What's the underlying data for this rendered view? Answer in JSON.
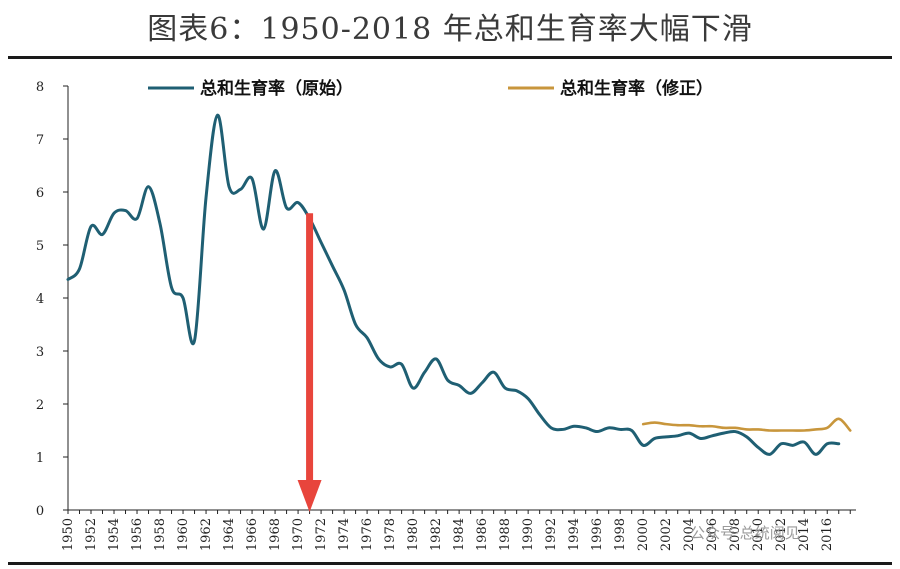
{
  "header": {
    "title": "图表6：1950-2018 年总和生育率大幅下滑"
  },
  "watermark": {
    "text": "公众号·总统阅见"
  },
  "chart_data": {
    "type": "line",
    "title": "图表6：1950-2018 年总和生育率大幅下滑",
    "xlabel": "",
    "ylabel": "",
    "xlim": [
      1950,
      2018.5
    ],
    "ylim": [
      0,
      8
    ],
    "yticks": [
      0,
      1,
      2,
      3,
      4,
      5,
      6,
      7,
      8
    ],
    "xticks": [
      1950,
      1952,
      1954,
      1956,
      1958,
      1960,
      1962,
      1964,
      1966,
      1968,
      1970,
      1972,
      1974,
      1976,
      1978,
      1980,
      1982,
      1984,
      1986,
      1988,
      1990,
      1992,
      1994,
      1996,
      1998,
      2000,
      2002,
      2004,
      2006,
      2008,
      2010,
      2012,
      2014,
      2016
    ],
    "legend_position": "top",
    "annotation": {
      "type": "arrow",
      "x": 1971,
      "y_from": 5.6,
      "y_to": 0,
      "color": "#e8453c"
    },
    "series": [
      {
        "name": "总和生育率（原始）",
        "color": "#1f5f73",
        "x": [
          1950,
          1951,
          1952,
          1953,
          1954,
          1955,
          1956,
          1957,
          1958,
          1959,
          1960,
          1961,
          1962,
          1963,
          1964,
          1965,
          1966,
          1967,
          1968,
          1969,
          1970,
          1971,
          1972,
          1973,
          1974,
          1975,
          1976,
          1977,
          1978,
          1979,
          1980,
          1981,
          1982,
          1983,
          1984,
          1985,
          1986,
          1987,
          1988,
          1989,
          1990,
          1991,
          1992,
          1993,
          1994,
          1995,
          1996,
          1997,
          1998,
          1999,
          2000,
          2001,
          2002,
          2003,
          2004,
          2005,
          2006,
          2007,
          2008,
          2009,
          2010,
          2011,
          2012,
          2013,
          2014,
          2015,
          2016,
          2017
        ],
        "values": [
          4.35,
          4.55,
          5.35,
          5.2,
          5.6,
          5.65,
          5.5,
          6.1,
          5.4,
          4.2,
          4.0,
          3.2,
          5.9,
          7.45,
          6.1,
          6.05,
          6.25,
          5.3,
          6.4,
          5.7,
          5.8,
          5.5,
          5.05,
          4.6,
          4.15,
          3.5,
          3.25,
          2.85,
          2.7,
          2.75,
          2.3,
          2.6,
          2.85,
          2.45,
          2.35,
          2.2,
          2.4,
          2.6,
          2.3,
          2.25,
          2.1,
          1.8,
          1.55,
          1.52,
          1.58,
          1.55,
          1.48,
          1.55,
          1.52,
          1.5,
          1.22,
          1.35,
          1.38,
          1.4,
          1.45,
          1.35,
          1.4,
          1.45,
          1.48,
          1.38,
          1.18,
          1.05,
          1.25,
          1.22,
          1.28,
          1.05,
          1.25,
          1.25
        ]
      },
      {
        "name": "总和生育率（修正）",
        "color": "#c8963c",
        "x": [
          2000,
          2001,
          2002,
          2003,
          2004,
          2005,
          2006,
          2007,
          2008,
          2009,
          2010,
          2011,
          2012,
          2013,
          2014,
          2015,
          2016,
          2017,
          2018
        ],
        "values": [
          1.62,
          1.65,
          1.62,
          1.6,
          1.6,
          1.58,
          1.58,
          1.55,
          1.55,
          1.52,
          1.52,
          1.5,
          1.5,
          1.5,
          1.5,
          1.52,
          1.55,
          1.72,
          1.5
        ]
      }
    ]
  }
}
